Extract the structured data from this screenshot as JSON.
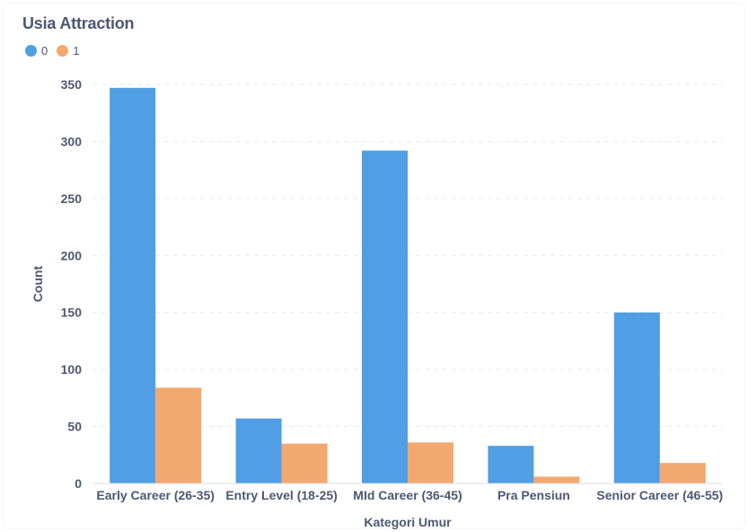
{
  "title": "Usia Attraction",
  "colors": {
    "series0": "#509ee3",
    "series1": "#f2a86f",
    "text": "#4c5773",
    "grid": "#e6e9ee"
  },
  "chart_data": {
    "type": "bar",
    "categories": [
      "Early Career (26-35)",
      "Entry Level (18-25)",
      "MId Career (36-45)",
      "Pra Pensiun",
      "Senior Career (46-55)"
    ],
    "series": [
      {
        "name": "0",
        "values": [
          347,
          57,
          292,
          33,
          150
        ]
      },
      {
        "name": "1",
        "values": [
          84,
          35,
          36,
          6,
          18
        ]
      }
    ],
    "xlabel": "Kategori Umur",
    "ylabel": "Count",
    "ylim": [
      0,
      350
    ],
    "yticks": [
      0,
      50,
      100,
      150,
      200,
      250,
      300,
      350
    ],
    "grid": true,
    "legend_position": "top-left"
  }
}
